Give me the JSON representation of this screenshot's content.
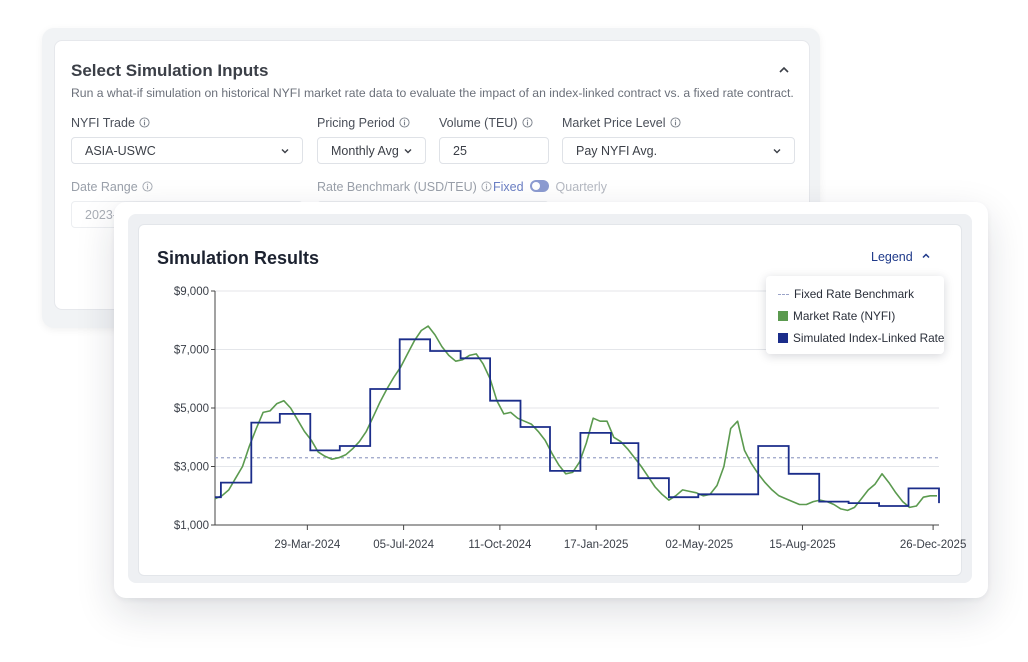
{
  "inputs": {
    "title": "Select Simulation Inputs",
    "subtitle": "Run a what-if simulation on historical NYFI market rate data to evaluate the impact of an index-linked contract vs. a fixed rate contract.",
    "trade": {
      "label": "NYFI Trade",
      "value": "ASIA-USWC"
    },
    "pricing_period": {
      "label": "Pricing Period",
      "value": "Monthly Avg"
    },
    "volume": {
      "label": "Volume (TEU)",
      "value": "25"
    },
    "market_price_level": {
      "label": "Market Price Level",
      "value": "Pay NYFI Avg."
    },
    "date_range": {
      "label": "Date Range",
      "value": "2023-Q4 → 2025-Q4"
    },
    "rate_benchmark": {
      "label": "Rate Benchmark (USD/TEU)",
      "value": "3300"
    },
    "toggle": {
      "on_label": "Fixed",
      "off_label": "Quarterly"
    }
  },
  "results": {
    "title": "Simulation Results",
    "legend_toggle": "Legend",
    "legend": [
      {
        "label": "Fixed Rate Benchmark",
        "color": "#9aa3c8",
        "style": "dashed"
      },
      {
        "label": "Market Rate (NYFI)",
        "color": "#5b9a4f",
        "style": "swatch"
      },
      {
        "label": "Simulated Index-Linked Rate",
        "color": "#1b2d8a",
        "style": "swatch"
      }
    ]
  },
  "chart_data": {
    "type": "line",
    "x_range": [
      "2023-12-26",
      "2026-01-01"
    ],
    "ylim": [
      1000,
      9000
    ],
    "y_ticks": [
      {
        "value": 1000,
        "label": "$1,000"
      },
      {
        "value": 3000,
        "label": "$3,000"
      },
      {
        "value": 5000,
        "label": "$5,000"
      },
      {
        "value": 7000,
        "label": "$7,000"
      },
      {
        "value": 9000,
        "label": "$9,000"
      }
    ],
    "x_ticks": [
      {
        "date": "2024-03-29",
        "label": "29-Mar-2024"
      },
      {
        "date": "2024-07-05",
        "label": "05-Jul-2024"
      },
      {
        "date": "2024-10-11",
        "label": "11-Oct-2024"
      },
      {
        "date": "2025-01-17",
        "label": "17-Jan-2025"
      },
      {
        "date": "2025-05-02",
        "label": "02-May-2025"
      },
      {
        "date": "2025-08-15",
        "label": "15-Aug-2025"
      },
      {
        "date": "2025-12-26",
        "label": "26-Dec-2025"
      }
    ],
    "grid": "horizontal",
    "legend_position": "top-right",
    "fixed_rate_benchmark": 3300,
    "series": [
      {
        "name": "Market Rate (NYFI)",
        "color": "#5b9a4f",
        "style": "line",
        "x": [
          "2023-12-26",
          "2024-01-02",
          "2024-01-09",
          "2024-01-16",
          "2024-01-23",
          "2024-01-30",
          "2024-02-06",
          "2024-02-13",
          "2024-02-20",
          "2024-02-27",
          "2024-03-05",
          "2024-03-12",
          "2024-03-19",
          "2024-03-26",
          "2024-04-02",
          "2024-04-09",
          "2024-04-16",
          "2024-04-23",
          "2024-04-30",
          "2024-05-07",
          "2024-05-14",
          "2024-05-21",
          "2024-05-28",
          "2024-06-04",
          "2024-06-11",
          "2024-06-18",
          "2024-06-25",
          "2024-07-02",
          "2024-07-09",
          "2024-07-16",
          "2024-07-23",
          "2024-07-30",
          "2024-08-06",
          "2024-08-13",
          "2024-08-20",
          "2024-08-27",
          "2024-09-03",
          "2024-09-10",
          "2024-09-17",
          "2024-09-24",
          "2024-10-01",
          "2024-10-08",
          "2024-10-15",
          "2024-10-22",
          "2024-10-29",
          "2024-11-05",
          "2024-11-12",
          "2024-11-19",
          "2024-11-26",
          "2024-12-03",
          "2024-12-10",
          "2024-12-17",
          "2024-12-24",
          "2024-12-31",
          "2025-01-07",
          "2025-01-14",
          "2025-01-21",
          "2025-01-28",
          "2025-02-04",
          "2025-02-11",
          "2025-02-18",
          "2025-02-25",
          "2025-03-04",
          "2025-03-11",
          "2025-03-18",
          "2025-03-25",
          "2025-04-01",
          "2025-04-08",
          "2025-04-15",
          "2025-04-22",
          "2025-04-29",
          "2025-05-06",
          "2025-05-13",
          "2025-05-20",
          "2025-05-27",
          "2025-06-03",
          "2025-06-10",
          "2025-06-17",
          "2025-06-24",
          "2025-07-01",
          "2025-07-08",
          "2025-07-15",
          "2025-07-22",
          "2025-07-29",
          "2025-08-05",
          "2025-08-12",
          "2025-08-19",
          "2025-08-26",
          "2025-09-02",
          "2025-09-09",
          "2025-09-16",
          "2025-09-23",
          "2025-09-30",
          "2025-10-07",
          "2025-10-14",
          "2025-10-21",
          "2025-10-28",
          "2025-11-04",
          "2025-11-11",
          "2025-11-18",
          "2025-11-25",
          "2025-12-02",
          "2025-12-09",
          "2025-12-16",
          "2025-12-23",
          "2025-12-30"
        ],
        "values": [
          1900,
          2000,
          2200,
          2600,
          3000,
          3700,
          4300,
          4850,
          4900,
          5150,
          5250,
          5000,
          4600,
          4200,
          3900,
          3500,
          3350,
          3250,
          3300,
          3400,
          3600,
          3850,
          4200,
          4700,
          5200,
          5650,
          6050,
          6400,
          6850,
          7300,
          7650,
          7800,
          7500,
          7100,
          6800,
          6600,
          6650,
          6800,
          6850,
          6500,
          6000,
          5250,
          4800,
          4850,
          4650,
          4550,
          4450,
          4200,
          3900,
          3450,
          3050,
          2750,
          2800,
          3150,
          3800,
          4650,
          4550,
          4550,
          4000,
          3850,
          3600,
          3300,
          3000,
          2650,
          2300,
          2050,
          1850,
          2000,
          2200,
          2150,
          2100,
          2000,
          2050,
          2350,
          3000,
          4300,
          4550,
          3550,
          3100,
          2750,
          2450,
          2200,
          2000,
          1900,
          1800,
          1700,
          1700,
          1800,
          1850,
          1800,
          1700,
          1550,
          1500,
          1600,
          1900,
          2200,
          2400,
          2750,
          2450,
          2100,
          1800,
          1600,
          1650,
          1950,
          2000,
          2000
        ]
      },
      {
        "name": "Simulated Index-Linked Rate",
        "color": "#1b2d8a",
        "style": "step",
        "x": [
          "2023-12-26",
          "2024-01-01",
          "2024-02-01",
          "2024-03-01",
          "2024-04-01",
          "2024-05-01",
          "2024-06-01",
          "2024-07-01",
          "2024-08-01",
          "2024-09-01",
          "2024-10-01",
          "2024-11-01",
          "2024-12-01",
          "2025-01-01",
          "2025-02-01",
          "2025-03-01",
          "2025-04-01",
          "2025-05-01",
          "2025-06-01",
          "2025-07-01",
          "2025-08-01",
          "2025-09-01",
          "2025-10-01",
          "2025-11-01",
          "2025-12-01",
          "2026-01-01"
        ],
        "values": [
          1950,
          2450,
          4500,
          4800,
          3550,
          3700,
          5650,
          7350,
          6950,
          6700,
          5250,
          4350,
          2850,
          4150,
          3800,
          2600,
          1950,
          2050,
          2050,
          3700,
          2750,
          1800,
          1750,
          1650,
          2250,
          1750
        ]
      }
    ]
  }
}
